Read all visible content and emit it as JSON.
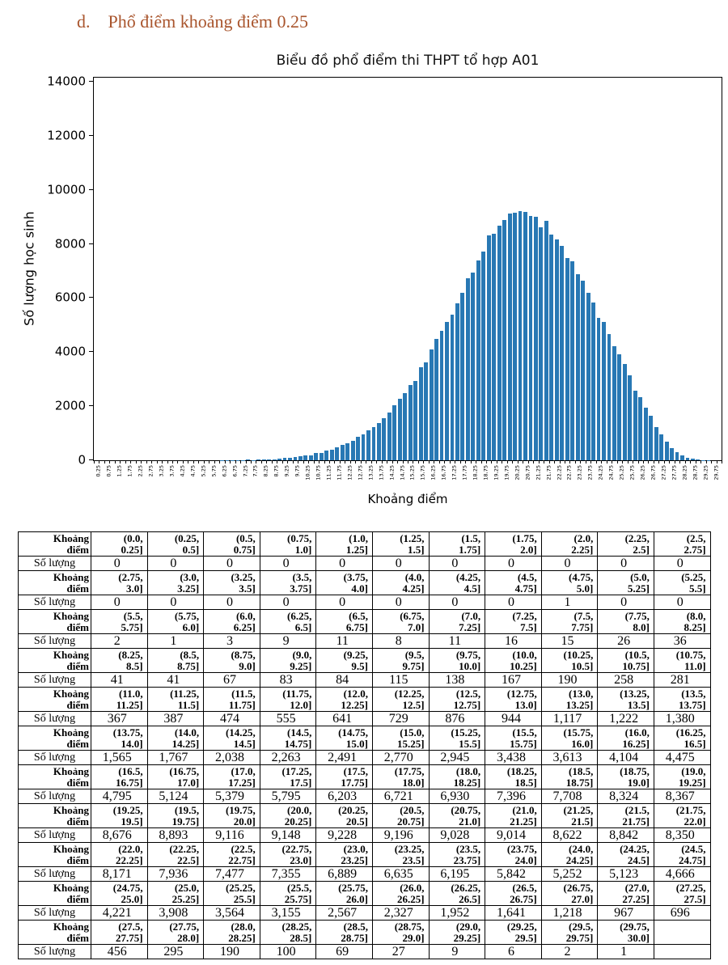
{
  "heading": {
    "index": "d.",
    "text": "Phổ điểm khoảng điểm 0.25"
  },
  "chart_data": {
    "type": "bar",
    "title": "Biểu đồ phổ điểm thi THPT tổ hợp A01",
    "xlabel": "Khoảng điểm",
    "ylabel": "Số lượng học sinh",
    "bar_color": "#2878b4",
    "grid": false,
    "legend": "none",
    "bin_start": 0.0,
    "bin_width": 0.25,
    "xlim": [
      0,
      30
    ],
    "ylim": [
      0,
      14150
    ],
    "yticks": [
      0,
      2000,
      4000,
      6000,
      8000,
      10000,
      12000,
      14000
    ],
    "xtick_labels": [
      "0,25",
      "0,75",
      "1,25",
      "1,75",
      "2,25",
      "2,75",
      "3,25",
      "3,75",
      "4,25",
      "4,75",
      "5,25",
      "5,75",
      "6,25",
      "6,75",
      "7,25",
      "7,75",
      "8,25",
      "8,75",
      "9,25",
      "9,75",
      "10,25",
      "10,75",
      "11,25",
      "11,75",
      "12,25",
      "12,75",
      "13,25",
      "13,75",
      "14,25",
      "14,75",
      "15,25",
      "15,75",
      "16,25",
      "16,75",
      "17,25",
      "17,75",
      "18,25",
      "18,75",
      "19,25",
      "19,75",
      "20,25",
      "20,75",
      "21,25",
      "21,75",
      "22,25",
      "22,75",
      "23,25",
      "23,75",
      "24,25",
      "24,75",
      "25,25",
      "25,75",
      "26,25",
      "26,75",
      "27,25",
      "27,75",
      "28,25",
      "28,75",
      "29,25",
      "29,75"
    ],
    "values": [
      0,
      0,
      0,
      0,
      0,
      0,
      0,
      0,
      0,
      0,
      0,
      0,
      0,
      0,
      0,
      0,
      0,
      0,
      0,
      1,
      0,
      0,
      2,
      1,
      3,
      9,
      11,
      8,
      11,
      16,
      15,
      26,
      36,
      41,
      41,
      67,
      83,
      84,
      115,
      138,
      167,
      190,
      258,
      281,
      367,
      387,
      474,
      555,
      641,
      729,
      876,
      944,
      1117,
      1222,
      1380,
      1565,
      1767,
      2038,
      2263,
      2491,
      2770,
      2945,
      3438,
      3613,
      4104,
      4475,
      4795,
      5124,
      5379,
      5795,
      6203,
      6721,
      6930,
      7396,
      7708,
      8324,
      8367,
      8676,
      8893,
      9116,
      9148,
      9228,
      9196,
      9028,
      9014,
      8622,
      8842,
      8350,
      8171,
      7936,
      7477,
      7355,
      6889,
      6635,
      6195,
      5842,
      5252,
      5123,
      4666,
      4221,
      3908,
      3564,
      3155,
      2567,
      2327,
      1952,
      1641,
      1218,
      967,
      696,
      456,
      295,
      190,
      100,
      69,
      27,
      9,
      6,
      2,
      1
    ]
  },
  "table": {
    "range_row_label": "Khoảng\nđiểm",
    "count_row_label": "Số lượng",
    "groups": [
      {
        "ranges": [
          "(0.0,\n0.25]",
          "(0.25,\n0.5]",
          "(0.5,\n0.75]",
          "(0.75,\n1.0]",
          "(1.0,\n1.25]",
          "(1.25,\n1.5]",
          "(1.5,\n1.75]",
          "(1.75,\n2.0]",
          "(2.0,\n2.25]",
          "(2.25,\n2.5]",
          "(2.5,\n2.75]"
        ],
        "counts": [
          "0",
          "0",
          "0",
          "0",
          "0",
          "0",
          "0",
          "0",
          "0",
          "0",
          "0"
        ]
      },
      {
        "ranges": [
          "(2.75,\n3.0]",
          "(3.0,\n3.25]",
          "(3.25,\n3.5]",
          "(3.5,\n3.75]",
          "(3.75,\n4.0]",
          "(4.0,\n4.25]",
          "(4.25,\n4.5]",
          "(4.5,\n4.75]",
          "(4.75,\n5.0]",
          "(5.0,\n5.25]",
          "(5.25,\n5.5]"
        ],
        "counts": [
          "0",
          "0",
          "0",
          "0",
          "0",
          "0",
          "0",
          "0",
          "1",
          "0",
          "0"
        ]
      },
      {
        "ranges": [
          "(5.5,\n5.75]",
          "(5.75,\n6.0]",
          "(6.0,\n6.25]",
          "(6.25,\n6.5]",
          "(6.5,\n6.75]",
          "(6.75,\n7.0]",
          "(7.0,\n7.25]",
          "(7.25,\n7.5]",
          "(7.5,\n7.75]",
          "(7.75,\n8.0]",
          "(8.0,\n8.25]"
        ],
        "counts": [
          "2",
          "1",
          "3",
          "9",
          "11",
          "8",
          "11",
          "16",
          "15",
          "26",
          "36"
        ]
      },
      {
        "ranges": [
          "(8.25,\n8.5]",
          "(8.5,\n8.75]",
          "(8.75,\n9.0]",
          "(9.0,\n9.25]",
          "(9.25,\n9.5]",
          "(9.5,\n9.75]",
          "(9.75,\n10.0]",
          "(10.0,\n10.25]",
          "(10.25,\n10.5]",
          "(10.5,\n10.75]",
          "(10.75,\n11.0]"
        ],
        "counts": [
          "41",
          "41",
          "67",
          "83",
          "84",
          "115",
          "138",
          "167",
          "190",
          "258",
          "281"
        ]
      },
      {
        "ranges": [
          "(11.0,\n11.25]",
          "(11.25,\n11.5]",
          "(11.5,\n11.75]",
          "(11.75,\n12.0]",
          "(12.0,\n12.25]",
          "(12.25,\n12.5]",
          "(12.5,\n12.75]",
          "(12.75,\n13.0]",
          "(13.0,\n13.25]",
          "(13.25,\n13.5]",
          "(13.5,\n13.75]"
        ],
        "counts": [
          "367",
          "387",
          "474",
          "555",
          "641",
          "729",
          "876",
          "944",
          "1,117",
          "1,222",
          "1,380"
        ]
      },
      {
        "ranges": [
          "(13.75,\n14.0]",
          "(14.0,\n14.25]",
          "(14.25,\n14.5]",
          "(14.5,\n14.75]",
          "(14.75,\n15.0]",
          "(15.0,\n15.25]",
          "(15.25,\n15.5]",
          "(15.5,\n15.75]",
          "(15.75,\n16.0]",
          "(16.0,\n16.25]",
          "(16.25,\n16.5]"
        ],
        "counts": [
          "1,565",
          "1,767",
          "2,038",
          "2,263",
          "2,491",
          "2,770",
          "2,945",
          "3,438",
          "3,613",
          "4,104",
          "4,475"
        ]
      },
      {
        "ranges": [
          "(16.5,\n16.75]",
          "(16.75,\n17.0]",
          "(17.0,\n17.25]",
          "(17.25,\n17.5]",
          "(17.5,\n17.75]",
          "(17.75,\n18.0]",
          "(18.0,\n18.25]",
          "(18.25,\n18.5]",
          "(18.5,\n18.75]",
          "(18.75,\n19.0]",
          "(19.0,\n19.25]"
        ],
        "counts": [
          "4,795",
          "5,124",
          "5,379",
          "5,795",
          "6,203",
          "6,721",
          "6,930",
          "7,396",
          "7,708",
          "8,324",
          "8,367"
        ]
      },
      {
        "ranges": [
          "(19.25,\n19.5]",
          "(19.5,\n19.75]",
          "(19.75,\n20.0]",
          "(20.0,\n20.25]",
          "(20.25,\n20.5]",
          "(20.5,\n20.75]",
          "(20.75,\n21.0]",
          "(21.0,\n21.25]",
          "(21.25,\n21.5]",
          "(21.5,\n21.75]",
          "(21.75,\n22.0]"
        ],
        "counts": [
          "8,676",
          "8,893",
          "9,116",
          "9,148",
          "9,228",
          "9,196",
          "9,028",
          "9,014",
          "8,622",
          "8,842",
          "8,350"
        ]
      },
      {
        "ranges": [
          "(22.0,\n22.25]",
          "(22.25,\n22.5]",
          "(22.5,\n22.75]",
          "(22.75,\n23.0]",
          "(23.0,\n23.25]",
          "(23.25,\n23.5]",
          "(23.5,\n23.75]",
          "(23.75,\n24.0]",
          "(24.0,\n24.25]",
          "(24.25,\n24.5]",
          "(24.5,\n24.75]"
        ],
        "counts": [
          "8,171",
          "7,936",
          "7,477",
          "7,355",
          "6,889",
          "6,635",
          "6,195",
          "5,842",
          "5,252",
          "5,123",
          "4,666"
        ]
      },
      {
        "ranges": [
          "(24.75,\n25.0]",
          "(25.0,\n25.25]",
          "(25.25,\n25.5]",
          "(25.5,\n25.75]",
          "(25.75,\n26.0]",
          "(26.0,\n26.25]",
          "(26.25,\n26.5]",
          "(26.5,\n26.75]",
          "(26.75,\n27.0]",
          "(27.0,\n27.25]",
          "(27.25,\n27.5]"
        ],
        "counts": [
          "4,221",
          "3,908",
          "3,564",
          "3,155",
          "2,567",
          "2,327",
          "1,952",
          "1,641",
          "1,218",
          "967",
          "696"
        ]
      },
      {
        "ranges": [
          "(27.5,\n27.75]",
          "(27.75,\n28.0]",
          "(28.0,\n28.25]",
          "(28.25,\n28.5]",
          "(28.5,\n28.75]",
          "(28.75,\n29.0]",
          "(29.0,\n29.25]",
          "(29.25,\n29.5]",
          "(29.5,\n29.75]",
          "(29.75,\n30.0]",
          ""
        ],
        "counts": [
          "456",
          "295",
          "190",
          "100",
          "69",
          "27",
          "9",
          "6",
          "2",
          "1",
          ""
        ]
      }
    ]
  }
}
